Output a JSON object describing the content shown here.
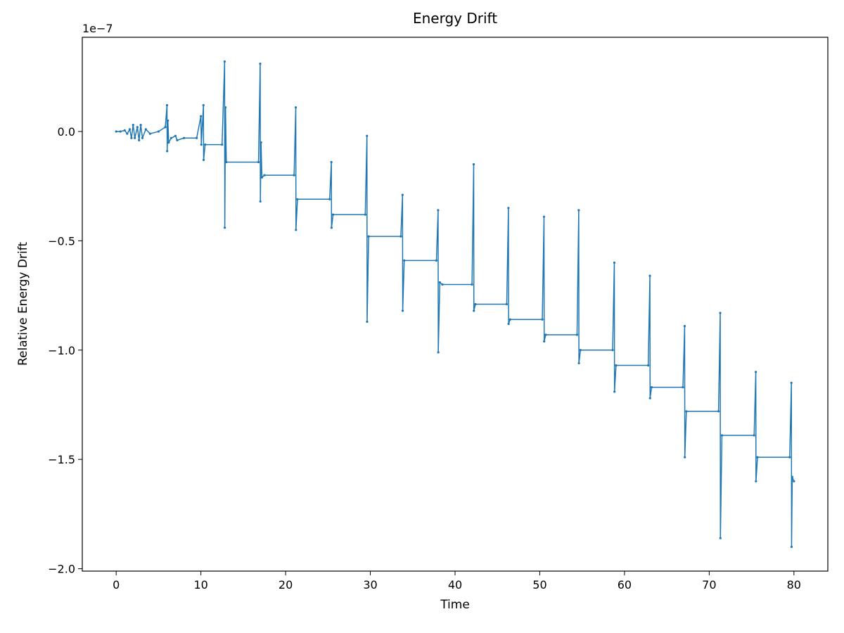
{
  "chart_data": {
    "type": "line",
    "title": "Energy Drift",
    "x_label": "Time",
    "y_label": "Relative Energy Drift",
    "y_offset_text": "1e−7",
    "xlim": [
      -4,
      84
    ],
    "ylim": [
      -2.011,
      0.431
    ],
    "grid": false,
    "xticks": [
      0,
      10,
      20,
      30,
      40,
      50,
      60,
      70,
      80
    ],
    "yticks": [
      {
        "value": -2.0,
        "label": "−2.0"
      },
      {
        "value": -1.5,
        "label": "−1.5"
      },
      {
        "value": -1.0,
        "label": "−1.0"
      },
      {
        "value": -0.5,
        "label": "−0.5"
      },
      {
        "value": 0.0,
        "label": "0.0"
      }
    ],
    "series": [
      {
        "color": "#1f77b4",
        "x": [
          0,
          0.5,
          1,
          1.3,
          1.6,
          1.8,
          2,
          2.2,
          2.5,
          2.7,
          2.9,
          3.1,
          3.5,
          4,
          5,
          5.8,
          6.0,
          6.02,
          6.1,
          6.2,
          6.5,
          7,
          7.2,
          8,
          9.5,
          10,
          10.05,
          10.3,
          10.32,
          10.5,
          12.5,
          12.8,
          12.82,
          12.9,
          13,
          16.8,
          17.0,
          17.02,
          17.1,
          17.2,
          17.5,
          21.0,
          21.2,
          21.22,
          21.4,
          25.2,
          25.4,
          25.42,
          25.6,
          29.4,
          29.6,
          29.62,
          29.8,
          33.6,
          33.8,
          33.82,
          34,
          37.8,
          38.0,
          38.02,
          38.2,
          38.5,
          42.0,
          42.2,
          42.22,
          42.4,
          46.1,
          46.3,
          46.32,
          46.5,
          50.3,
          50.5,
          50.52,
          50.7,
          54.4,
          54.6,
          54.62,
          54.8,
          58.6,
          58.8,
          58.82,
          59.0,
          62.8,
          63.0,
          63.02,
          63.2,
          66.9,
          67.1,
          67.12,
          67.3,
          71.1,
          71.3,
          71.32,
          71.5,
          75.3,
          75.5,
          75.52,
          75.7,
          79.5,
          79.7,
          79.72,
          79.8,
          80
        ],
        "values": [
          0,
          0,
          0.005,
          -0.01,
          0.01,
          -0.03,
          0.03,
          -0.03,
          0.02,
          -0.04,
          0.03,
          -0.03,
          0.01,
          -0.01,
          0,
          0.02,
          0.12,
          -0.09,
          0.05,
          -0.05,
          -0.03,
          -0.02,
          -0.04,
          -0.03,
          -0.03,
          0.07,
          -0.06,
          0.12,
          -0.13,
          -0.06,
          -0.06,
          0.32,
          -0.44,
          0.11,
          -0.14,
          -0.14,
          0.31,
          -0.32,
          -0.05,
          -0.21,
          -0.2,
          -0.2,
          0.11,
          -0.45,
          -0.31,
          -0.31,
          -0.14,
          -0.44,
          -0.38,
          -0.38,
          -0.02,
          -0.87,
          -0.48,
          -0.48,
          -0.29,
          -0.82,
          -0.59,
          -0.59,
          -0.36,
          -1.01,
          -0.69,
          -0.7,
          -0.7,
          -0.15,
          -0.82,
          -0.79,
          -0.79,
          -0.35,
          -0.88,
          -0.86,
          -0.86,
          -0.39,
          -0.96,
          -0.93,
          -0.93,
          -0.36,
          -1.06,
          -1.0,
          -1.0,
          -0.6,
          -1.19,
          -1.07,
          -1.07,
          -0.66,
          -1.22,
          -1.17,
          -1.17,
          -0.89,
          -1.49,
          -1.28,
          -1.28,
          -0.83,
          -1.86,
          -1.39,
          -1.39,
          -1.1,
          -1.6,
          -1.49,
          -1.49,
          -1.15,
          -1.9,
          -1.58,
          -1.6
        ]
      }
    ]
  }
}
